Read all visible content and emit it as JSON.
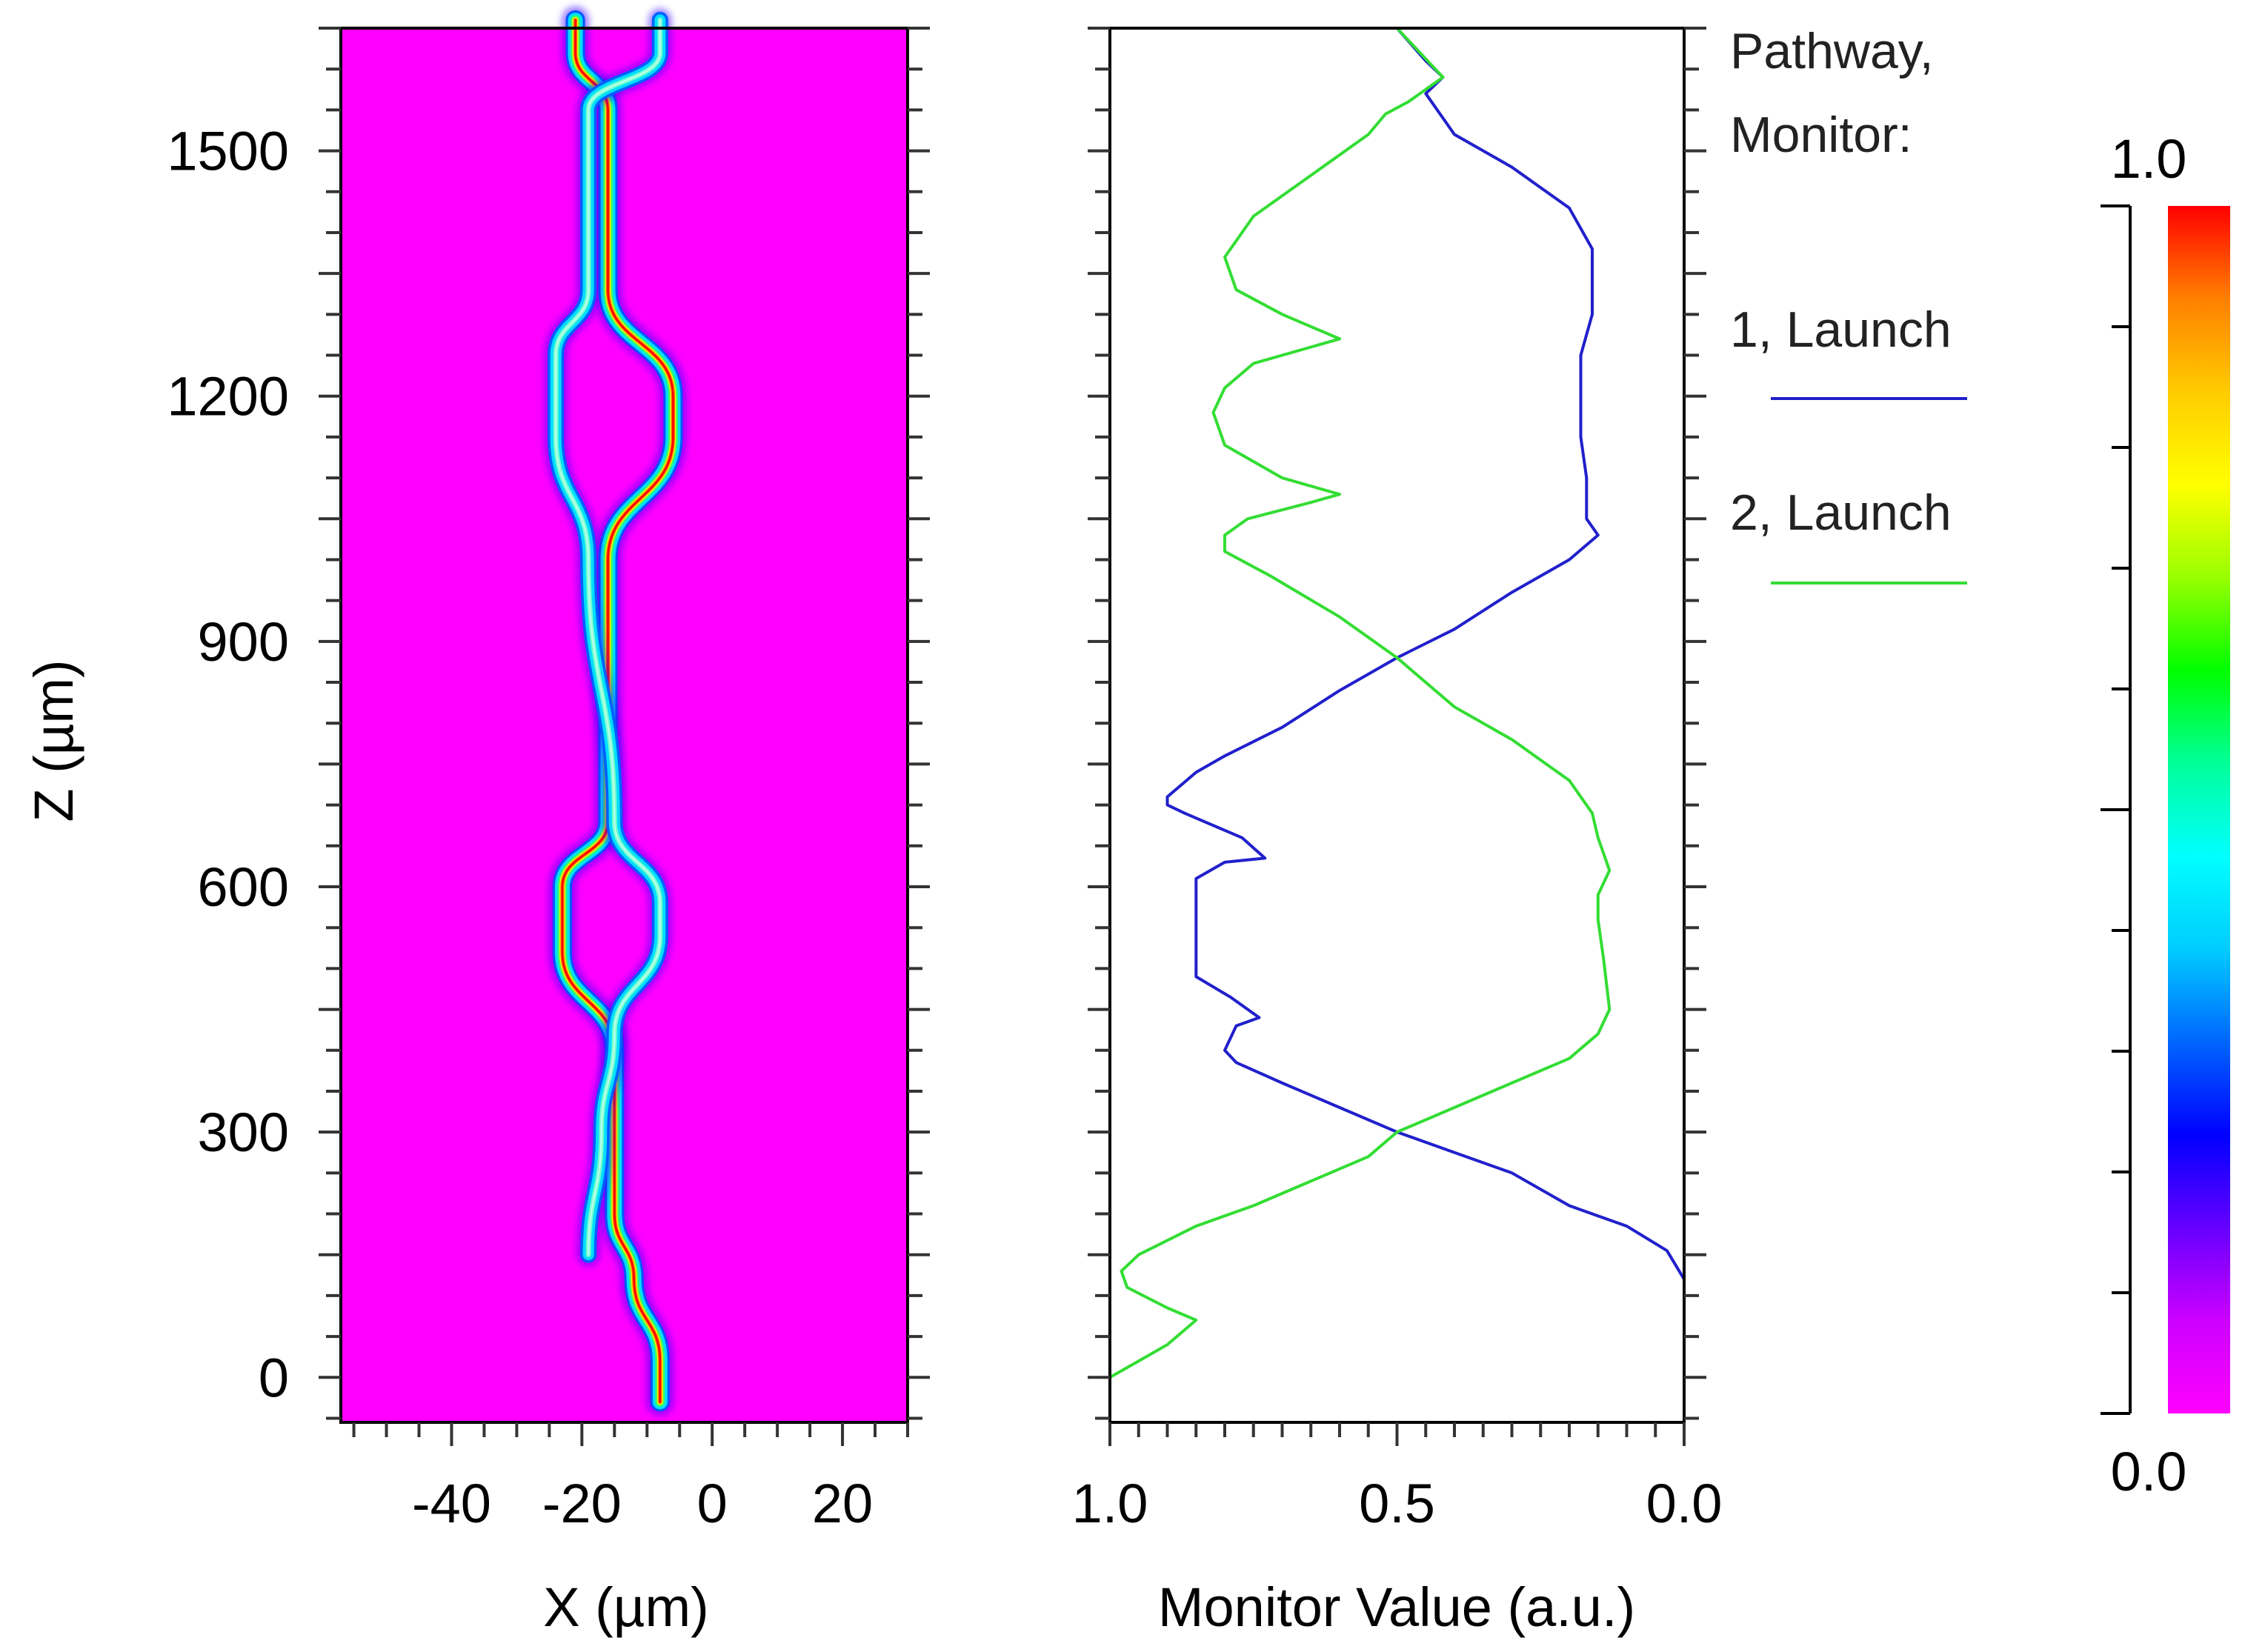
{
  "chart_data": [
    {
      "type": "heatmap",
      "title": "",
      "xlabel": "X (µm)",
      "ylabel": "Z (µm)",
      "xlim": [
        -57,
        30
      ],
      "ylim": [
        -55,
        1650
      ],
      "xticks": [
        -40,
        -20,
        0,
        20
      ],
      "xtick_labels": [
        "-40",
        "-20",
        "0",
        "20"
      ],
      "yticks": [
        0,
        300,
        600,
        900,
        1200,
        1500
      ],
      "ytick_labels": [
        "0",
        "300",
        "600",
        "900",
        "1200",
        "1500"
      ],
      "background_color": "#ff00ff",
      "waveguides": [
        {
          "name": "",
          "path": [
            [
              -8,
              -30
            ],
            [
              -8,
              20
            ],
            [
              -12,
              120
            ],
            [
              -15,
              200
            ],
            [
              -15,
              400
            ],
            [
              -23,
              520
            ],
            [
              -23,
              600
            ],
            [
              -16,
              680
            ],
            [
              -16,
              1000
            ],
            [
              -6,
              1150
            ],
            [
              -6,
              1200
            ],
            [
              -16,
              1330
            ],
            [
              -16,
              1550
            ],
            [
              -21,
              1620
            ],
            [
              -21,
              1660
            ]
          ],
          "peak_intensity": 1.0
        },
        {
          "name": "",
          "path": [
            [
              -19,
              150
            ],
            [
              -17,
              300
            ],
            [
              -15,
              420
            ],
            [
              -8,
              540
            ],
            [
              -8,
              580
            ],
            [
              -15,
              680
            ],
            [
              -19,
              1000
            ],
            [
              -24,
              1150
            ],
            [
              -24,
              1250
            ],
            [
              -19,
              1330
            ],
            [
              -19,
              1550
            ],
            [
              -8,
              1620
            ],
            [
              -8,
              1660
            ]
          ],
          "peak_intensity": 0.55
        }
      ]
    },
    {
      "type": "line",
      "title": "",
      "xlabel": "Monitor Value (a.u.)",
      "ylabel": "",
      "xlim": [
        1.0,
        0.0
      ],
      "ylim": [
        -55,
        1650
      ],
      "xticks": [
        1.0,
        0.5,
        0.0
      ],
      "xtick_labels": [
        "1.0",
        "0.5",
        "0.0"
      ],
      "legend": {
        "title_line1": "Pathway,",
        "title_line2": "Monitor:",
        "placement": "right"
      },
      "series": [
        {
          "name": "1, Launch",
          "color": "#2020cc",
          "points": [
            [
              0.0,
              -50
            ],
            [
              0.0,
              120
            ],
            [
              0.03,
              155
            ],
            [
              0.1,
              185
            ],
            [
              0.2,
              210
            ],
            [
              0.3,
              250
            ],
            [
              0.4,
              275
            ],
            [
              0.5,
              300
            ],
            [
              0.6,
              330
            ],
            [
              0.7,
              360
            ],
            [
              0.78,
              385
            ],
            [
              0.8,
              400
            ],
            [
              0.78,
              430
            ],
            [
              0.74,
              440
            ],
            [
              0.79,
              465
            ],
            [
              0.85,
              490
            ],
            [
              0.85,
              560
            ],
            [
              0.85,
              610
            ],
            [
              0.8,
              630
            ],
            [
              0.73,
              635
            ],
            [
              0.77,
              660
            ],
            [
              0.87,
              690
            ],
            [
              0.9,
              700
            ],
            [
              0.9,
              710
            ],
            [
              0.85,
              740
            ],
            [
              0.8,
              760
            ],
            [
              0.7,
              795
            ],
            [
              0.6,
              840
            ],
            [
              0.5,
              880
            ],
            [
              0.4,
              915
            ],
            [
              0.3,
              960
            ],
            [
              0.2,
              1000
            ],
            [
              0.15,
              1030
            ],
            [
              0.17,
              1050
            ],
            [
              0.17,
              1100
            ],
            [
              0.18,
              1150
            ],
            [
              0.18,
              1250
            ],
            [
              0.16,
              1300
            ],
            [
              0.16,
              1380
            ],
            [
              0.2,
              1430
            ],
            [
              0.3,
              1480
            ],
            [
              0.4,
              1520
            ],
            [
              0.45,
              1570
            ],
            [
              0.42,
              1590
            ],
            [
              0.45,
              1610
            ],
            [
              0.5,
              1650
            ]
          ]
        },
        {
          "name": "2, Launch",
          "color": "#33dd33",
          "points": [
            [
              1.0,
              -50
            ],
            [
              1.0,
              0
            ],
            [
              0.95,
              20
            ],
            [
              0.9,
              40
            ],
            [
              0.85,
              70
            ],
            [
              0.9,
              85
            ],
            [
              0.97,
              110
            ],
            [
              0.98,
              130
            ],
            [
              0.95,
              150
            ],
            [
              0.85,
              185
            ],
            [
              0.75,
              210
            ],
            [
              0.65,
              240
            ],
            [
              0.55,
              270
            ],
            [
              0.5,
              300
            ],
            [
              0.4,
              330
            ],
            [
              0.3,
              360
            ],
            [
              0.2,
              390
            ],
            [
              0.15,
              420
            ],
            [
              0.13,
              450
            ],
            [
              0.14,
              510
            ],
            [
              0.15,
              560
            ],
            [
              0.15,
              590
            ],
            [
              0.13,
              620
            ],
            [
              0.15,
              660
            ],
            [
              0.16,
              690
            ],
            [
              0.2,
              730
            ],
            [
              0.3,
              780
            ],
            [
              0.4,
              820
            ],
            [
              0.5,
              880
            ],
            [
              0.6,
              930
            ],
            [
              0.72,
              980
            ],
            [
              0.8,
              1010
            ],
            [
              0.8,
              1030
            ],
            [
              0.76,
              1050
            ],
            [
              0.65,
              1070
            ],
            [
              0.6,
              1080
            ],
            [
              0.7,
              1100
            ],
            [
              0.8,
              1140
            ],
            [
              0.82,
              1180
            ],
            [
              0.8,
              1210
            ],
            [
              0.75,
              1240
            ],
            [
              0.65,
              1260
            ],
            [
              0.6,
              1270
            ],
            [
              0.7,
              1300
            ],
            [
              0.78,
              1330
            ],
            [
              0.8,
              1370
            ],
            [
              0.75,
              1420
            ],
            [
              0.65,
              1470
            ],
            [
              0.55,
              1520
            ],
            [
              0.52,
              1545
            ],
            [
              0.48,
              1560
            ],
            [
              0.42,
              1590
            ],
            [
              0.46,
              1620
            ],
            [
              0.5,
              1650
            ]
          ]
        }
      ]
    },
    {
      "type": "colorbar",
      "min_label": "0.0",
      "max_label": "1.0",
      "range": [
        0.0,
        1.0
      ],
      "colors": [
        "#ff00ff",
        "#cc00ff",
        "#6600ff",
        "#0000ff",
        "#0066ff",
        "#00ccff",
        "#00ffff",
        "#00ff99",
        "#00ff00",
        "#99ff00",
        "#ffff00",
        "#ffcc00",
        "#ff8000",
        "#ff0000"
      ]
    }
  ]
}
